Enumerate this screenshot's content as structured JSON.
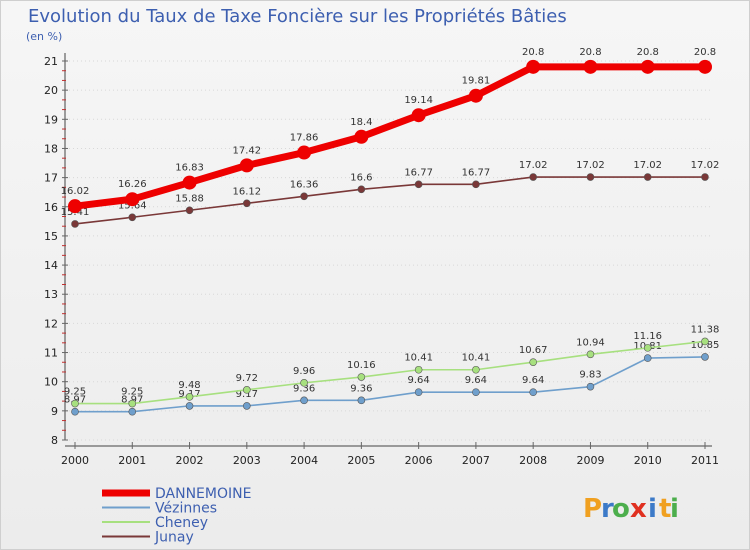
{
  "chart_data": {
    "type": "line",
    "title": "Evolution du Taux de Taxe Foncière sur les Propriétés Bâties",
    "ylabel": "(en %)",
    "ylim": [
      8,
      21
    ],
    "y_ticks": [
      "8",
      "9",
      "10",
      "11",
      "12",
      "13",
      "14",
      "15",
      "16",
      "17",
      "18",
      "19",
      "20",
      "21"
    ],
    "categories": [
      "2000",
      "2001",
      "2002",
      "2003",
      "2004",
      "2005",
      "2006",
      "2007",
      "2008",
      "2009",
      "2010",
      "2011"
    ],
    "series": [
      {
        "name": "DANNEMOINE",
        "color": "#ee0000",
        "values": [
          16.02,
          16.26,
          16.83,
          17.42,
          17.86,
          18.4,
          19.14,
          19.81,
          20.8,
          20.8,
          20.8,
          20.8
        ],
        "labels": [
          "16.02",
          "16.26",
          "16.83",
          "17.42",
          "17.86",
          "18.4",
          "19.14",
          "19.81",
          "20.8",
          "20.8",
          "20.8",
          "20.8"
        ]
      },
      {
        "name": "Vézinnes",
        "color": "#6f9fcc",
        "values": [
          8.97,
          8.97,
          9.17,
          9.17,
          9.36,
          9.36,
          9.64,
          9.64,
          9.64,
          9.83,
          10.81,
          10.85
        ],
        "labels": [
          "8.97",
          "8.97",
          "9.17",
          "9.17",
          "9.36",
          "9.36",
          "9.64",
          "9.64",
          "9.64",
          "9.83",
          "10.81",
          "10.85"
        ]
      },
      {
        "name": "Cheney",
        "color": "#a7e07f",
        "values": [
          9.25,
          9.25,
          9.48,
          9.72,
          9.96,
          10.16,
          10.41,
          10.41,
          10.67,
          10.94,
          11.16,
          11.38
        ],
        "labels": [
          "9.25",
          "9.25",
          "9.48",
          "9.72",
          "9.96",
          "10.16",
          "10.41",
          "10.41",
          "10.67",
          "10.94",
          "11.16",
          "11.38"
        ]
      },
      {
        "name": "Junay",
        "color": "#7a3838",
        "values": [
          15.41,
          15.64,
          15.88,
          16.12,
          16.36,
          16.6,
          16.77,
          16.77,
          17.02,
          17.02,
          17.02,
          17.02
        ],
        "labels": [
          "15.41",
          "15.64",
          "15.88",
          "16.12",
          "16.36",
          "16.6",
          "16.77",
          "16.77",
          "17.02",
          "17.02",
          "17.02",
          "17.02"
        ]
      }
    ],
    "legend": [
      "DANNEMOINE",
      "Vézinnes",
      "Cheney",
      "Junay"
    ]
  },
  "brand": {
    "letters": [
      "P",
      "r",
      "o",
      "x",
      "i",
      "t",
      "i"
    ],
    "colors": [
      "#f0a020",
      "#3c7ac8",
      "#4cae4c",
      "#e03020",
      "#3c7ac8",
      "#f0a020",
      "#4cae4c"
    ]
  }
}
